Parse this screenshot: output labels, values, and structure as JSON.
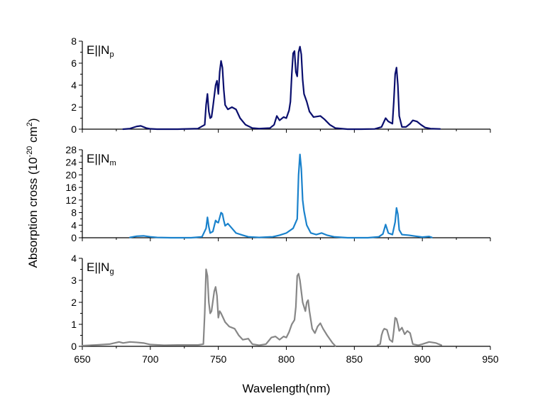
{
  "chart_data": {
    "type": "line",
    "xlabel": "Wavelength(nm)",
    "ylabel": {
      "main": "Absorption cross (10",
      "exp": "-20",
      "unit": " cm",
      "unit_exp": "2",
      "close": ")"
    },
    "xlim": [
      650,
      950
    ],
    "xticks": [
      650,
      700,
      750,
      800,
      850,
      900,
      950
    ],
    "panels": [
      {
        "label_main": "E||N",
        "label_sub": "p",
        "color": "#0a0f6e",
        "ylim": [
          0,
          8
        ],
        "yticks": [
          0,
          2,
          4,
          6,
          8
        ],
        "segments": [
          [
            [
              680,
              0
            ],
            [
              685,
              0.05
            ],
            [
              690,
              0.25
            ],
            [
              693,
              0.3
            ],
            [
              697,
              0.1
            ],
            [
              700,
              0.03
            ],
            [
              705,
              0
            ],
            [
              720,
              0
            ],
            [
              735,
              0.05
            ],
            [
              740,
              0.4
            ],
            [
              741,
              2.2
            ],
            [
              742,
              3.2
            ],
            [
              743,
              1.6
            ],
            [
              744,
              1.0
            ],
            [
              745,
              1.1
            ],
            [
              746,
              2.0
            ],
            [
              748,
              4.0
            ],
            [
              749,
              4.4
            ],
            [
              750,
              3.2
            ],
            [
              751,
              5.2
            ],
            [
              752,
              6.2
            ],
            [
              753,
              5.6
            ],
            [
              754,
              3.6
            ],
            [
              755,
              2.2
            ],
            [
              757,
              1.8
            ],
            [
              760,
              2.0
            ],
            [
              763,
              1.8
            ],
            [
              766,
              1.0
            ],
            [
              770,
              0.4
            ],
            [
              775,
              0.1
            ],
            [
              780,
              0.05
            ],
            [
              788,
              0.1
            ],
            [
              791,
              0.4
            ],
            [
              793,
              1.2
            ],
            [
              795,
              0.8
            ],
            [
              798,
              1.1
            ],
            [
              800,
              1.0
            ],
            [
              802,
              1.7
            ],
            [
              803,
              2.5
            ],
            [
              804,
              5.0
            ],
            [
              805,
              6.9
            ],
            [
              806,
              7.1
            ],
            [
              807,
              5.2
            ],
            [
              808,
              4.8
            ],
            [
              809,
              7.0
            ],
            [
              810,
              7.5
            ],
            [
              811,
              6.8
            ],
            [
              812,
              4.5
            ],
            [
              813,
              3.2
            ],
            [
              815,
              2.5
            ],
            [
              817,
              1.6
            ],
            [
              820,
              1.1
            ],
            [
              825,
              1.2
            ],
            [
              828,
              0.9
            ],
            [
              832,
              0.4
            ],
            [
              836,
              0.1
            ],
            [
              845,
              0
            ],
            [
              855,
              0
            ],
            [
              865,
              0.02
            ],
            [
              870,
              0.2
            ],
            [
              873,
              1.0
            ],
            [
              875,
              0.7
            ],
            [
              878,
              0.5
            ],
            [
              879,
              2.5
            ],
            [
              880,
              5.0
            ],
            [
              881,
              5.6
            ],
            [
              882,
              4.0
            ],
            [
              883,
              1.2
            ],
            [
              885,
              0.2
            ],
            [
              888,
              0.2
            ],
            [
              891,
              0.5
            ],
            [
              893,
              0.8
            ],
            [
              896,
              0.7
            ],
            [
              899,
              0.4
            ],
            [
              902,
              0.15
            ],
            [
              906,
              0.05
            ],
            [
              913,
              0.02
            ]
          ]
        ]
      },
      {
        "label_main": "E||N",
        "label_sub": "m",
        "color": "#1a82cc",
        "ylim": [
          0,
          28
        ],
        "yticks": [
          0,
          4,
          8,
          12,
          16,
          20,
          24,
          28
        ],
        "segments": [
          [
            [
              685,
              0.1
            ],
            [
              690,
              0.5
            ],
            [
              695,
              0.6
            ],
            [
              700,
              0.3
            ],
            [
              705,
              0.1
            ],
            [
              715,
              0
            ],
            [
              730,
              0
            ],
            [
              738,
              0.3
            ],
            [
              741,
              3.0
            ],
            [
              742,
              6.5
            ],
            [
              743,
              3.5
            ],
            [
              744,
              1.5
            ],
            [
              746,
              2.0
            ],
            [
              748,
              5.5
            ],
            [
              749,
              5.0
            ],
            [
              750,
              4.8
            ],
            [
              752,
              8.0
            ],
            [
              753,
              7.6
            ],
            [
              754,
              5.5
            ],
            [
              755,
              3.8
            ],
            [
              757,
              4.5
            ],
            [
              760,
              3.0
            ],
            [
              763,
              1.5
            ],
            [
              768,
              0.8
            ],
            [
              772,
              0.3
            ],
            [
              780,
              0.1
            ],
            [
              790,
              0.3
            ],
            [
              795,
              0.8
            ],
            [
              800,
              1.5
            ],
            [
              805,
              3.0
            ],
            [
              808,
              6.0
            ],
            [
              809,
              20.0
            ],
            [
              810,
              26.5
            ],
            [
              811,
              22.0
            ],
            [
              812,
              12.0
            ],
            [
              813,
              8.5
            ],
            [
              815,
              4.0
            ],
            [
              818,
              1.5
            ],
            [
              822,
              1.0
            ],
            [
              826,
              1.5
            ],
            [
              830,
              0.8
            ],
            [
              835,
              0.3
            ],
            [
              845,
              0
            ],
            [
              860,
              0
            ],
            [
              868,
              0.3
            ],
            [
              871,
              1.2
            ],
            [
              873,
              4.2
            ],
            [
              875,
              1.5
            ],
            [
              878,
              1.0
            ],
            [
              880,
              5.0
            ],
            [
              881,
              9.5
            ],
            [
              882,
              7.5
            ],
            [
              883,
              2.5
            ],
            [
              885,
              1.0
            ],
            [
              890,
              0.8
            ],
            [
              895,
              0.5
            ],
            [
              900,
              0.2
            ],
            [
              905,
              0.4
            ],
            [
              907,
              0.1
            ]
          ]
        ]
      },
      {
        "label_main": "E||N",
        "label_sub": "g",
        "color": "#878787",
        "ylim": [
          0,
          4
        ],
        "yticks": [
          0,
          1,
          2,
          3,
          4
        ],
        "segments": [
          [
            [
              650,
              0.03
            ],
            [
              660,
              0.06
            ],
            [
              670,
              0.1
            ],
            [
              677,
              0.2
            ],
            [
              680,
              0.15
            ],
            [
              685,
              0.2
            ],
            [
              690,
              0.18
            ],
            [
              695,
              0.15
            ],
            [
              700,
              0.08
            ],
            [
              710,
              0.05
            ],
            [
              720,
              0.06
            ],
            [
              735,
              0.06
            ],
            [
              739,
              0.1
            ],
            [
              740,
              1.5
            ],
            [
              741,
              3.5
            ],
            [
              742,
              3.2
            ],
            [
              743,
              2.0
            ],
            [
              744,
              1.5
            ],
            [
              745,
              1.6
            ],
            [
              747,
              2.5
            ],
            [
              748,
              2.7
            ],
            [
              749,
              2.3
            ],
            [
              750,
              1.3
            ],
            [
              751,
              1.6
            ],
            [
              752,
              1.5
            ],
            [
              755,
              1.1
            ],
            [
              758,
              0.9
            ],
            [
              762,
              0.8
            ],
            [
              765,
              0.5
            ],
            [
              768,
              0.3
            ],
            [
              772,
              0.35
            ],
            [
              775,
              0.1
            ],
            [
              780,
              0.05
            ],
            [
              785,
              0.1
            ],
            [
              789,
              0.4
            ],
            [
              792,
              0.45
            ],
            [
              795,
              0.3
            ],
            [
              798,
              0.45
            ],
            [
              800,
              0.4
            ],
            [
              802,
              0.65
            ],
            [
              804,
              1.0
            ],
            [
              806,
              1.2
            ],
            [
              807,
              1.8
            ],
            [
              808,
              3.2
            ],
            [
              809,
              3.3
            ],
            [
              810,
              3.0
            ],
            [
              812,
              2.0
            ],
            [
              814,
              1.6
            ],
            [
              815,
              2.0
            ],
            [
              816,
              2.1
            ],
            [
              817,
              1.6
            ],
            [
              819,
              0.8
            ],
            [
              821,
              0.6
            ],
            [
              823,
              0.9
            ],
            [
              825,
              1.05
            ],
            [
              827,
              0.8
            ],
            [
              830,
              0.5
            ],
            [
              834,
              0.15
            ],
            [
              836,
              0.02
            ]
          ],
          [
            [
              867,
              0.05
            ],
            [
              869,
              0.1
            ],
            [
              870,
              0.5
            ],
            [
              871,
              0.7
            ],
            [
              872,
              0.8
            ],
            [
              874,
              0.75
            ],
            [
              876,
              0.3
            ],
            [
              878,
              0.2
            ],
            [
              879,
              0.7
            ],
            [
              880,
              1.3
            ],
            [
              881,
              1.25
            ],
            [
              882,
              1.0
            ],
            [
              883,
              0.7
            ],
            [
              885,
              0.85
            ],
            [
              887,
              0.55
            ],
            [
              889,
              0.7
            ],
            [
              891,
              0.6
            ],
            [
              893,
              0.1
            ],
            [
              897,
              0.05
            ],
            [
              900,
              0.1
            ],
            [
              905,
              0.2
            ],
            [
              910,
              0.15
            ],
            [
              914,
              0.05
            ]
          ]
        ]
      }
    ]
  }
}
